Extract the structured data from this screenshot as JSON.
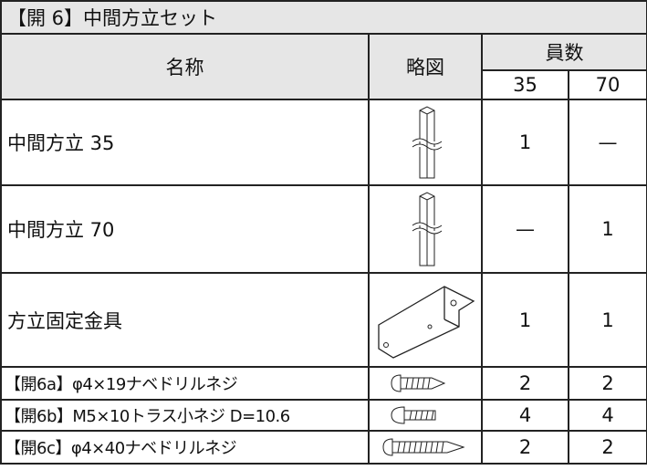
{
  "title": "【開 6】中間方立セット",
  "table": {
    "headers": {
      "name": "名称",
      "sketch": "略図",
      "count": "員数",
      "sizes": [
        "35",
        "70"
      ]
    },
    "rows": [
      [
        "中間方立 35",
        "1",
        "—"
      ],
      [
        "中間方立 70",
        "—",
        "1"
      ],
      [
        "方立固定金具",
        "1",
        "1"
      ],
      [
        "【開6a】φ4×19ナベドリルネジ",
        "2",
        "2"
      ],
      [
        "【開6b】M5×10トラス小ネジ D=10.6",
        "4",
        "4"
      ],
      [
        "【開6c】φ4×40ナベドリルネジ",
        "2",
        "2"
      ]
    ]
  }
}
